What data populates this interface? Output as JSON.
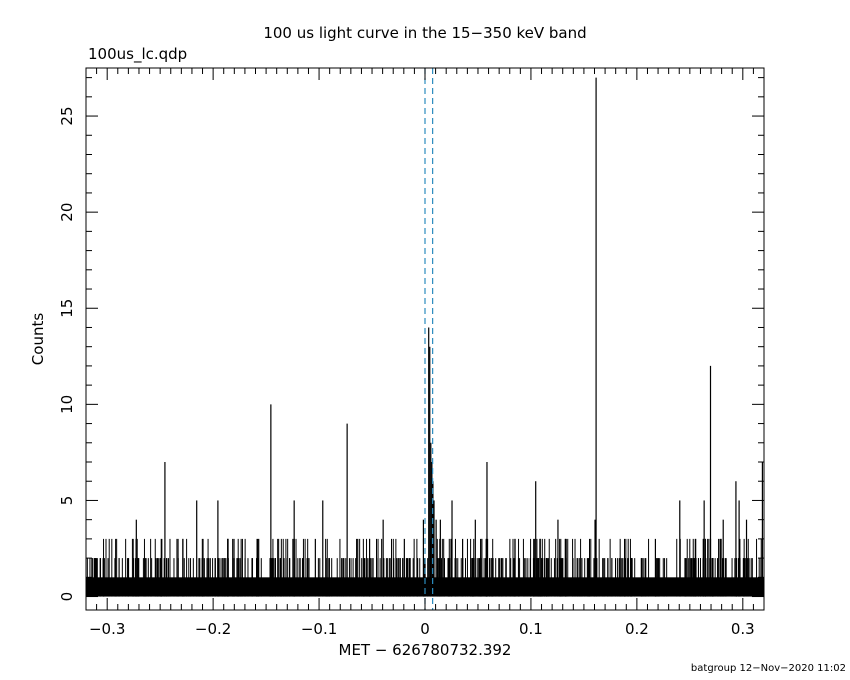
{
  "chart_data": {
    "type": "bar",
    "title": "100 us light curve in the 15−350 keV band",
    "file_label": "100us_lc.qdp",
    "xlabel": "MET − 626780732.392",
    "ylabel": "Counts",
    "xlim": [
      -0.32,
      0.32
    ],
    "ylim": [
      -0.7,
      27.5
    ],
    "x_ticks": [
      -0.3,
      -0.2,
      -0.1,
      0,
      0.1,
      0.2,
      0.3
    ],
    "x_tick_labels": [
      "−0.3",
      "−0.2",
      "−0.1",
      "0",
      "0.1",
      "0.2",
      "0.3"
    ],
    "y_ticks": [
      0,
      5,
      10,
      15,
      20,
      25
    ],
    "y_tick_labels": [
      "0",
      "5",
      "10",
      "15",
      "20",
      "25"
    ],
    "bin_width": 0.0001,
    "baseline_count": 1,
    "series": [
      {
        "x": [
          -0.2455,
          -0.1455,
          -0.0735,
          0.0035,
          0.0045,
          0.0055,
          0.0065,
          0.0075,
          0.0085,
          0.0585,
          0.1045,
          0.1615,
          0.2695,
          0.2935,
          0.2965,
          0.3185,
          -0.2155,
          -0.1955,
          -0.1235,
          -0.0965,
          -0.0015,
          0.0105,
          0.0255,
          0.2405,
          0.2635,
          0.3035,
          -0.2725,
          -0.2285,
          -0.1815,
          -0.1035,
          -0.0635,
          -0.0395,
          -0.0195,
          0.0145,
          0.0355,
          0.0475,
          0.1255,
          0.1605,
          0.2175,
          0.2555,
          0.2815
        ],
        "y": [
          7,
          10,
          9,
          14,
          13,
          8,
          7,
          6,
          5,
          7,
          6,
          27,
          12,
          6,
          5,
          7,
          5,
          5,
          5,
          5,
          4,
          4,
          5,
          5,
          5,
          4,
          4,
          3,
          3,
          3,
          3,
          4,
          3,
          4,
          3,
          4,
          4,
          4,
          3,
          3,
          4
        ]
      }
    ],
    "vlines": [
      0.0,
      0.0072
    ],
    "vline_color": "#2b8cbe"
  },
  "footer": "batgroup 12−Nov−2020 11:02"
}
